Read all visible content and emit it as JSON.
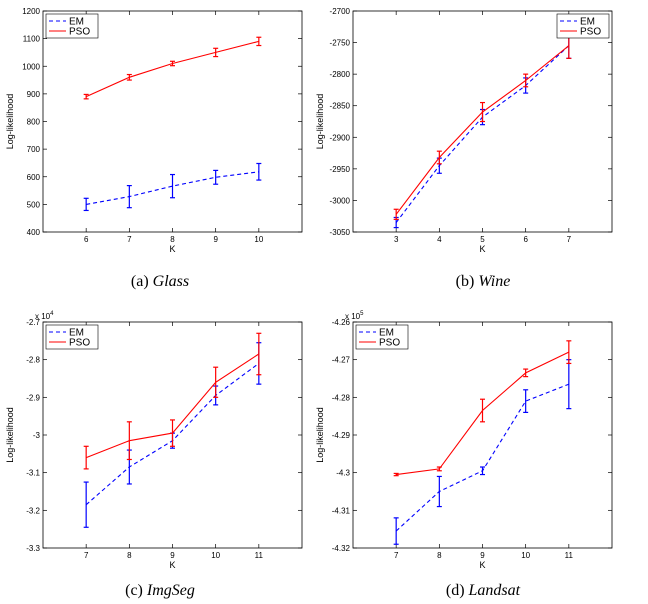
{
  "chart_data": [
    {
      "type": "line",
      "caption_label": "(a)",
      "caption_name": "Glass",
      "xlabel": "K",
      "ylabel": "Log-likelihood",
      "x": [
        6,
        7,
        8,
        9,
        10
      ],
      "xlim": [
        5,
        11
      ],
      "ylim": [
        400,
        1200
      ],
      "xticks": [
        "6",
        "7",
        "8",
        "9",
        "10"
      ],
      "yticks": [
        "400",
        "500",
        "600",
        "700",
        "800",
        "900",
        "1000",
        "1100",
        "1200"
      ],
      "exponent": "",
      "legend_position": "top-left",
      "grid": false,
      "series": [
        {
          "name": "EM",
          "color": "#0000ff",
          "style": "dashed",
          "values": [
            500,
            528,
            566,
            598,
            618
          ],
          "errors": [
            22,
            40,
            42,
            25,
            30
          ]
        },
        {
          "name": "PSO",
          "color": "#ff0000",
          "style": "solid",
          "values": [
            890,
            960,
            1010,
            1050,
            1090
          ],
          "errors": [
            8,
            10,
            8,
            15,
            15
          ]
        }
      ]
    },
    {
      "type": "line",
      "caption_label": "(b)",
      "caption_name": "Wine",
      "xlabel": "K",
      "ylabel": "Log-likelihood",
      "x": [
        3,
        4,
        5,
        6,
        7
      ],
      "xlim": [
        2,
        8
      ],
      "ylim": [
        -3050,
        -2700
      ],
      "xticks": [
        "3",
        "4",
        "5",
        "6",
        "7"
      ],
      "yticks": [
        "-3050",
        "-3000",
        "-2950",
        "-2900",
        "-2850",
        "-2800",
        "-2750",
        "-2700"
      ],
      "exponent": "",
      "legend_position": "top-right",
      "grid": false,
      "series": [
        {
          "name": "EM",
          "color": "#0000ff",
          "style": "dashed",
          "values": [
            -3035,
            -2945,
            -2868,
            -2818,
            -2755
          ],
          "errors": [
            8,
            12,
            12,
            12,
            20
          ]
        },
        {
          "name": "PSO",
          "color": "#ff0000",
          "style": "solid",
          "values": [
            -3022,
            -2932,
            -2860,
            -2810,
            -2755
          ],
          "errors": [
            8,
            10,
            15,
            10,
            20
          ]
        }
      ]
    },
    {
      "type": "line",
      "caption_label": "(c)",
      "caption_name": "ImgSeg",
      "xlabel": "K",
      "ylabel": "Log-likelihood",
      "x": [
        7,
        8,
        9,
        10,
        11
      ],
      "xlim": [
        6,
        12
      ],
      "ylim": [
        -3.3,
        -2.7
      ],
      "xticks": [
        "7",
        "8",
        "9",
        "10",
        "11"
      ],
      "yticks": [
        "-3.3",
        "-3.2",
        "-3.1",
        "-3",
        "-2.9",
        "-2.8",
        "-2.7"
      ],
      "exponent_base": "x 10",
      "exponent": "4",
      "legend_position": "top-left",
      "grid": false,
      "series": [
        {
          "name": "EM",
          "color": "#0000ff",
          "style": "dashed",
          "values": [
            -3.185,
            -3.085,
            -3.015,
            -2.895,
            -2.81
          ],
          "errors": [
            0.06,
            0.045,
            0.02,
            0.025,
            0.055
          ]
        },
        {
          "name": "PSO",
          "color": "#ff0000",
          "style": "solid",
          "values": [
            -3.06,
            -3.015,
            -2.995,
            -2.86,
            -2.785
          ],
          "errors": [
            0.03,
            0.05,
            0.035,
            0.04,
            0.055
          ]
        }
      ]
    },
    {
      "type": "line",
      "caption_label": "(d)",
      "caption_name": "Landsat",
      "xlabel": "K",
      "ylabel": "Log-likelihood",
      "x": [
        7,
        8,
        9,
        10,
        11
      ],
      "xlim": [
        6,
        12
      ],
      "ylim": [
        -4.32,
        -4.26
      ],
      "xticks": [
        "7",
        "8",
        "9",
        "10",
        "11"
      ],
      "yticks": [
        "-4.32",
        "-4.31",
        "-4.3",
        "-4.29",
        "-4.28",
        "-4.27",
        "-4.26"
      ],
      "exponent_base": "x 10",
      "exponent": "5",
      "legend_position": "top-left",
      "grid": false,
      "series": [
        {
          "name": "EM",
          "color": "#0000ff",
          "style": "dashed",
          "values": [
            -4.3155,
            -4.305,
            -4.2995,
            -4.281,
            -4.2765
          ],
          "errors": [
            0.0035,
            0.004,
            0.001,
            0.003,
            0.0065
          ]
        },
        {
          "name": "PSO",
          "color": "#ff0000",
          "style": "solid",
          "values": [
            -4.3005,
            -4.299,
            -4.2835,
            -4.2735,
            -4.268
          ],
          "errors": [
            0.0003,
            0.0005,
            0.003,
            0.001,
            0.003
          ]
        }
      ]
    }
  ]
}
